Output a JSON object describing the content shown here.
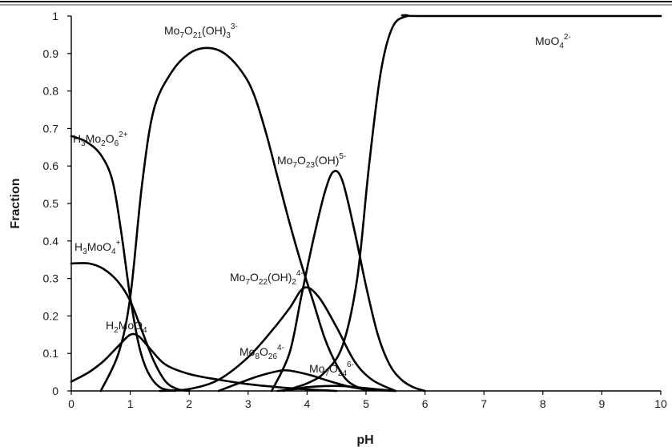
{
  "chart_data": {
    "type": "line",
    "xlabel": "pH",
    "ylabel": "Fraction",
    "xlim": [
      0,
      10
    ],
    "ylim": [
      0,
      1
    ],
    "xticks": [
      "0",
      "1",
      "2",
      "3",
      "4",
      "5",
      "6",
      "7",
      "8",
      "9",
      "10"
    ],
    "yticks": [
      "0",
      "0.1",
      "0.2",
      "0.3",
      "0.4",
      "0.5",
      "0.6",
      "0.7",
      "0.8",
      "0.9",
      "1"
    ],
    "grid": false,
    "line_color": "#000000",
    "series": [
      {
        "label": {
          "parts": [
            {
              "t": "H"
            },
            {
              "t": "3",
              "s": "sub"
            },
            {
              "t": "Mo"
            },
            {
              "t": "2",
              "s": "sub"
            },
            {
              "t": "O"
            },
            {
              "t": "6",
              "s": "sub"
            },
            {
              "t": "2+",
              "s": "sup"
            }
          ]
        },
        "points": [
          [
            0,
            0.68
          ],
          [
            0.25,
            0.665
          ],
          [
            0.5,
            0.63
          ],
          [
            0.7,
            0.56
          ],
          [
            0.85,
            0.42
          ],
          [
            1.0,
            0.25
          ],
          [
            1.15,
            0.12
          ],
          [
            1.3,
            0.05
          ],
          [
            1.5,
            0.01
          ],
          [
            1.75,
            0.0
          ]
        ]
      },
      {
        "label": {
          "parts": [
            {
              "t": "H"
            },
            {
              "t": "3",
              "s": "sub"
            },
            {
              "t": "MoO"
            },
            {
              "t": "4",
              "s": "sub"
            },
            {
              "t": "+",
              "s": "sup"
            }
          ]
        },
        "points": [
          [
            0,
            0.34
          ],
          [
            0.3,
            0.34
          ],
          [
            0.55,
            0.325
          ],
          [
            0.8,
            0.29
          ],
          [
            1.0,
            0.24
          ],
          [
            1.2,
            0.16
          ],
          [
            1.4,
            0.08
          ],
          [
            1.6,
            0.025
          ],
          [
            1.8,
            0.005
          ],
          [
            2.0,
            0.0
          ]
        ]
      },
      {
        "label": {
          "parts": [
            {
              "t": "H"
            },
            {
              "t": "2",
              "s": "sub"
            },
            {
              "t": "MoO"
            },
            {
              "t": "4",
              "s": "sub"
            }
          ]
        },
        "points": [
          [
            0,
            0.025
          ],
          [
            0.3,
            0.05
          ],
          [
            0.55,
            0.08
          ],
          [
            0.8,
            0.12
          ],
          [
            1.0,
            0.15
          ],
          [
            1.15,
            0.145
          ],
          [
            1.35,
            0.11
          ],
          [
            1.6,
            0.07
          ],
          [
            2.0,
            0.045
          ],
          [
            2.5,
            0.03
          ],
          [
            3.0,
            0.018
          ],
          [
            3.5,
            0.01
          ],
          [
            4.0,
            0.004
          ],
          [
            4.5,
            0.0
          ]
        ]
      },
      {
        "label": {
          "parts": [
            {
              "t": "Mo"
            },
            {
              "t": "7",
              "s": "sub"
            },
            {
              "t": "O"
            },
            {
              "t": "21",
              "s": "sub"
            },
            {
              "t": "(OH)"
            },
            {
              "t": "3",
              "s": "sub"
            },
            {
              "t": "3-",
              "s": "sup"
            }
          ]
        },
        "points": [
          [
            0.5,
            0.0
          ],
          [
            0.8,
            0.1
          ],
          [
            1.0,
            0.25
          ],
          [
            1.2,
            0.55
          ],
          [
            1.4,
            0.75
          ],
          [
            1.7,
            0.85
          ],
          [
            2.0,
            0.9
          ],
          [
            2.3,
            0.915
          ],
          [
            2.6,
            0.9
          ],
          [
            2.9,
            0.85
          ],
          [
            3.1,
            0.79
          ],
          [
            3.3,
            0.69
          ],
          [
            3.5,
            0.57
          ],
          [
            3.7,
            0.45
          ],
          [
            3.9,
            0.34
          ],
          [
            4.1,
            0.24
          ],
          [
            4.3,
            0.14
          ],
          [
            4.5,
            0.07
          ],
          [
            4.7,
            0.025
          ],
          [
            5.0,
            0.0
          ]
        ]
      },
      {
        "label": {
          "parts": [
            {
              "t": "Mo"
            },
            {
              "t": "7",
              "s": "sub"
            },
            {
              "t": "O"
            },
            {
              "t": "23",
              "s": "sub"
            },
            {
              "t": "(OH)"
            },
            {
              "t": "5-",
              "s": "sup"
            }
          ]
        },
        "points": [
          [
            3.4,
            0.0
          ],
          [
            3.7,
            0.1
          ],
          [
            3.9,
            0.25
          ],
          [
            4.1,
            0.4
          ],
          [
            4.3,
            0.53
          ],
          [
            4.45,
            0.585
          ],
          [
            4.6,
            0.56
          ],
          [
            4.8,
            0.43
          ],
          [
            5.0,
            0.28
          ],
          [
            5.2,
            0.15
          ],
          [
            5.4,
            0.07
          ],
          [
            5.6,
            0.03
          ],
          [
            5.8,
            0.01
          ],
          [
            6.0,
            0.0
          ]
        ]
      },
      {
        "label": {
          "parts": [
            {
              "t": "Mo"
            },
            {
              "t": "7",
              "s": "sub"
            },
            {
              "t": "O"
            },
            {
              "t": "22",
              "s": "sub"
            },
            {
              "t": "(OH)"
            },
            {
              "t": "2",
              "s": "sub"
            },
            {
              "t": "4-",
              "s": "sup"
            }
          ]
        },
        "points": [
          [
            1.5,
            0.0
          ],
          [
            2.0,
            0.005
          ],
          [
            2.5,
            0.03
          ],
          [
            3.0,
            0.09
          ],
          [
            3.4,
            0.16
          ],
          [
            3.7,
            0.22
          ],
          [
            3.95,
            0.275
          ],
          [
            4.2,
            0.25
          ],
          [
            4.5,
            0.17
          ],
          [
            4.8,
            0.08
          ],
          [
            5.1,
            0.03
          ],
          [
            5.5,
            0.0
          ]
        ]
      },
      {
        "label": {
          "parts": [
            {
              "t": "Mo"
            },
            {
              "t": "8",
              "s": "sub"
            },
            {
              "t": "O"
            },
            {
              "t": "26",
              "s": "sub"
            },
            {
              "t": "4-",
              "s": "sup"
            }
          ]
        },
        "points": [
          [
            2.5,
            0.0
          ],
          [
            3.0,
            0.03
          ],
          [
            3.3,
            0.045
          ],
          [
            3.6,
            0.055
          ],
          [
            3.85,
            0.05
          ],
          [
            4.1,
            0.04
          ],
          [
            4.4,
            0.025
          ],
          [
            4.7,
            0.012
          ],
          [
            5.0,
            0.004
          ],
          [
            5.5,
            0.0
          ]
        ]
      },
      {
        "label": {
          "parts": [
            {
              "t": "Mo"
            },
            {
              "t": "7",
              "s": "sub"
            },
            {
              "t": "O"
            },
            {
              "t": "24",
              "s": "sub"
            },
            {
              "t": "6-",
              "s": "sup"
            }
          ]
        },
        "points": [
          [
            3.5,
            0.0
          ],
          [
            3.8,
            0.005
          ],
          [
            4.0,
            0.01
          ],
          [
            4.3,
            0.013
          ],
          [
            4.6,
            0.013
          ],
          [
            4.9,
            0.009
          ],
          [
            5.2,
            0.004
          ],
          [
            5.5,
            0.0
          ]
        ]
      },
      {
        "label": {
          "parts": [
            {
              "t": "MoO"
            },
            {
              "t": "4",
              "s": "sub"
            },
            {
              "t": "2-",
              "s": "sup"
            }
          ]
        },
        "points": [
          [
            3.6,
            0.0
          ],
          [
            4.0,
            0.02
          ],
          [
            4.3,
            0.05
          ],
          [
            4.6,
            0.12
          ],
          [
            4.85,
            0.3
          ],
          [
            5.05,
            0.6
          ],
          [
            5.25,
            0.85
          ],
          [
            5.45,
            0.97
          ],
          [
            5.7,
            1.0
          ],
          [
            6.0,
            1.0
          ],
          [
            10.0,
            1.0
          ]
        ]
      }
    ]
  }
}
